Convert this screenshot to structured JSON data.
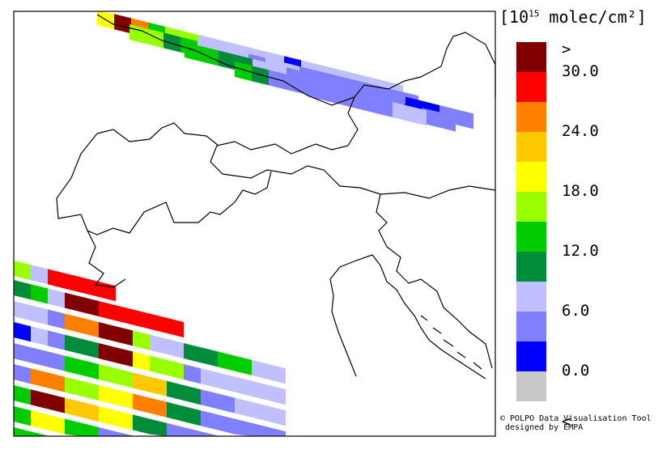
{
  "legend": {
    "units_prefix": "[10",
    "units_exponent": "15",
    "units_suffix": " molec/cm²]",
    "bins": [
      {
        "color": "#800000",
        "label": ">"
      },
      {
        "color": "#ff0000",
        "label": "30.0"
      },
      {
        "color": "#ff8000",
        "label": ""
      },
      {
        "color": "#ffc800",
        "label": "24.0"
      },
      {
        "color": "#ffff00",
        "label": ""
      },
      {
        "color": "#99ff00",
        "label": "18.0"
      },
      {
        "color": "#00cc00",
        "label": ""
      },
      {
        "color": "#008c3a",
        "label": "12.0"
      },
      {
        "color": "#c0c0ff",
        "label": ""
      },
      {
        "color": "#8080ff",
        "label": "6.0"
      },
      {
        "color": "#0000ff",
        "label": ""
      },
      {
        "color": "#c8c8c8",
        "label": "0.0"
      }
    ],
    "below_label": "<"
  },
  "credit": {
    "line1": "© POLPO Data Visualisation Tool",
    "line2": "designed by EMPA"
  }
}
